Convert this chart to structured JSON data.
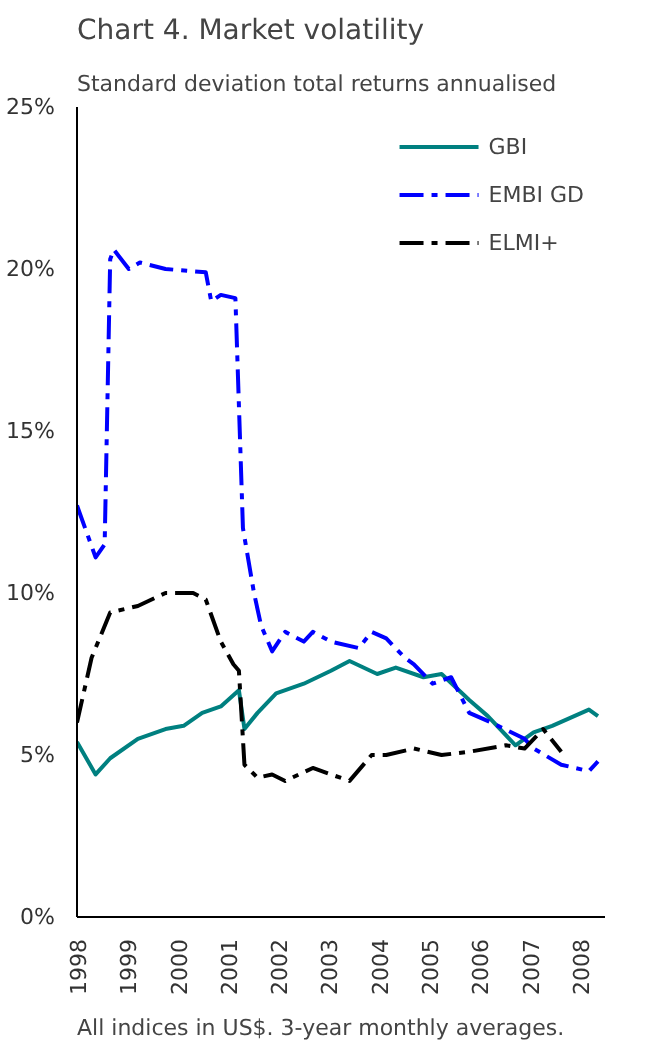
{
  "chart_data": {
    "type": "line",
    "title": "Chart 4. Market volatility",
    "subtitle": "Standard deviation total returns annualised",
    "annotations": [
      "All indices in US$. 3-year monthly averages."
    ],
    "xlim": [
      1998,
      2008.5
    ],
    "xticks": [
      1998,
      1999,
      2000,
      2001,
      2002,
      2003,
      2004,
      2005,
      2006,
      2007,
      2008
    ],
    "ylim": [
      0,
      25
    ],
    "yticks": [
      {
        "value": 0,
        "label": "0%"
      },
      {
        "value": 5,
        "label": "5%"
      },
      {
        "value": 10,
        "label": "10%"
      },
      {
        "value": 15,
        "label": "15%"
      },
      {
        "value": 20,
        "label": "20%"
      },
      {
        "value": 25,
        "label": "25%"
      }
    ],
    "grid": false,
    "legend": "top right",
    "series": [
      {
        "name": "GBI",
        "color": "#008080",
        "line_style": "solid",
        "x": [
          1998.0,
          1998.37,
          1998.66,
          1999.21,
          1999.76,
          2000.12,
          2000.49,
          2000.86,
          2001.22,
          2001.33,
          2001.59,
          2001.96,
          2002.51,
          2003.05,
          2003.42,
          2003.97,
          2004.34,
          2004.89,
          2005.25,
          2005.8,
          2006.17,
          2006.72,
          2007.08,
          2007.45,
          2008.18,
          2008.36
        ],
        "values": [
          5.4,
          4.4,
          4.9,
          5.5,
          5.8,
          5.9,
          6.3,
          6.5,
          7.0,
          5.8,
          6.3,
          6.9,
          7.2,
          7.6,
          7.9,
          7.5,
          7.7,
          7.4,
          7.5,
          6.7,
          6.2,
          5.3,
          5.7,
          5.9,
          6.4,
          6.2
        ]
      },
      {
        "name": "EMBI GD",
        "color": "#0000ff",
        "line_style": "dashed",
        "x": [
          1998.0,
          1998.37,
          1998.55,
          1998.66,
          1998.73,
          1999.03,
          1999.25,
          1999.76,
          2000.56,
          2000.67,
          2000.86,
          2001.15,
          2001.3,
          2001.52,
          2001.66,
          2001.88,
          2002.14,
          2002.51,
          2002.69,
          2003.05,
          2003.6,
          2003.86,
          2004.15,
          2004.52,
          2004.7,
          2005.07,
          2005.44,
          2005.8,
          2006.24,
          2006.9,
          2007.08,
          2007.63,
          2008.18,
          2008.36
        ],
        "values": [
          12.7,
          11.1,
          11.5,
          20.3,
          20.6,
          20.0,
          20.2,
          20.0,
          19.9,
          19.0,
          19.2,
          19.1,
          12.0,
          10.0,
          9.0,
          8.2,
          8.8,
          8.5,
          8.8,
          8.5,
          8.3,
          8.8,
          8.6,
          8.0,
          7.8,
          7.2,
          7.4,
          6.3,
          6.0,
          5.5,
          5.2,
          4.7,
          4.5,
          4.8
        ]
      },
      {
        "name": "ELMI+",
        "color": "#000000",
        "line_style": "dashed",
        "x": [
          1998.0,
          1998.29,
          1998.66,
          1999.21,
          1999.76,
          2000.31,
          2000.56,
          2000.86,
          2001.11,
          2001.22,
          2001.33,
          2001.59,
          2001.88,
          2002.14,
          2002.69,
          2003.05,
          2003.42,
          2003.86,
          2004.15,
          2004.7,
          2005.25,
          2005.8,
          2006.53,
          2006.9,
          2007.27,
          2007.63
        ],
        "values": [
          6.0,
          8.0,
          9.4,
          9.6,
          10.0,
          10.0,
          9.8,
          8.5,
          7.8,
          7.6,
          4.7,
          4.3,
          4.4,
          4.2,
          4.6,
          4.4,
          4.2,
          5.0,
          5.0,
          5.2,
          5.0,
          5.1,
          5.3,
          5.2,
          5.8,
          5.1
        ]
      }
    ]
  }
}
